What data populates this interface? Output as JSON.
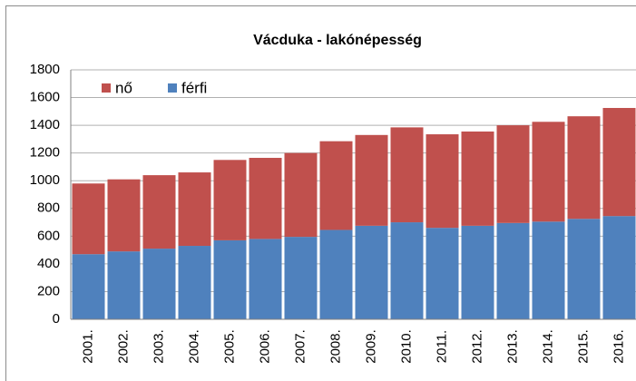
{
  "chart_data": {
    "type": "bar",
    "stacked": true,
    "title": "Vácduka - lakónépesség",
    "categories": [
      "2001.",
      "2002.",
      "2003.",
      "2004.",
      "2005.",
      "2006.",
      "2007.",
      "2008.",
      "2009.",
      "2010.",
      "2011.",
      "2012.",
      "2013.",
      "2014.",
      "2015.",
      "2016."
    ],
    "series": [
      {
        "name": "nő",
        "color": "#c0504d",
        "values": [
          510,
          520,
          530,
          530,
          580,
          585,
          605,
          640,
          655,
          685,
          675,
          680,
          705,
          720,
          740,
          780
        ]
      },
      {
        "name": "férfi",
        "color": "#4f81bd",
        "values": [
          470,
          490,
          510,
          530,
          570,
          580,
          595,
          645,
          675,
          700,
          660,
          675,
          695,
          705,
          725,
          745
        ]
      }
    ],
    "ylim": [
      0,
      1800
    ],
    "yticks": [
      0,
      200,
      400,
      600,
      800,
      1000,
      1200,
      1400,
      1600,
      1800
    ],
    "grid": true,
    "legend": "top-left"
  }
}
